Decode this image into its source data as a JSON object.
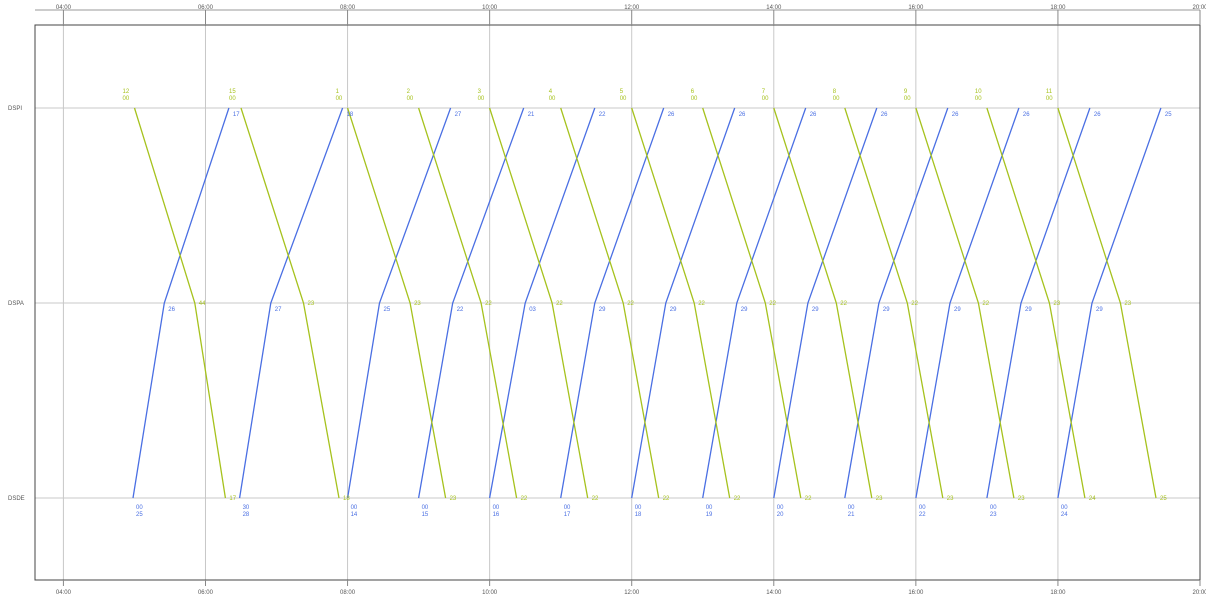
{
  "chart_data": {
    "type": "line",
    "title": "",
    "xlabel": "",
    "ylabel": "",
    "x_unit": "hours",
    "xlim": [
      3.6,
      20.0
    ],
    "x_ticks": [
      {
        "value": 4,
        "label": "04:00"
      },
      {
        "value": 6,
        "label": "06:00"
      },
      {
        "value": 8,
        "label": "08:00"
      },
      {
        "value": 10,
        "label": "10:00"
      },
      {
        "value": 12,
        "label": "12:00"
      },
      {
        "value": 14,
        "label": "14:00"
      },
      {
        "value": 16,
        "label": "16:00"
      },
      {
        "value": 18,
        "label": "18:00"
      },
      {
        "value": 20,
        "label": "20:00"
      }
    ],
    "stations": [
      "DSPI",
      "DSPA",
      "DSDE"
    ],
    "grid": true,
    "legend": "none",
    "colors": {
      "northbound": "#4a6fe3",
      "southbound": "#a6c21d",
      "frame": "#444444",
      "grid": "#c8c8c8"
    },
    "series": [
      {
        "direction": "northbound",
        "stops": [
          {
            "station": "DSDE",
            "time": 4.98
          },
          {
            "station": "DSPA",
            "time": 5.42
          },
          {
            "station": "DSPI",
            "time": 6.33
          }
        ],
        "labels": [
          {
            "station": "DSDE",
            "lines": [
              "00",
              "25"
            ]
          },
          {
            "station": "DSPA",
            "lines": [
              "26"
            ]
          },
          {
            "station": "DSPI",
            "lines": [
              "17"
            ]
          }
        ]
      },
      {
        "direction": "northbound",
        "stops": [
          {
            "station": "DSDE",
            "time": 6.48
          },
          {
            "station": "DSPA",
            "time": 6.92
          },
          {
            "station": "DSPI",
            "time": 7.93
          }
        ],
        "labels": [
          {
            "station": "DSDE",
            "lines": [
              "30",
              "28"
            ]
          },
          {
            "station": "DSPA",
            "lines": [
              "27"
            ]
          },
          {
            "station": "DSPI",
            "lines": [
              "18"
            ]
          }
        ]
      },
      {
        "direction": "northbound",
        "stops": [
          {
            "station": "DSDE",
            "time": 8.0
          },
          {
            "station": "DSPA",
            "time": 8.45
          },
          {
            "station": "DSPI",
            "time": 9.45
          }
        ],
        "labels": [
          {
            "station": "DSDE",
            "lines": [
              "00",
              "14"
            ]
          },
          {
            "station": "DSPA",
            "lines": [
              "25"
            ]
          },
          {
            "station": "DSPI",
            "lines": [
              "27"
            ]
          }
        ]
      },
      {
        "direction": "northbound",
        "stops": [
          {
            "station": "DSDE",
            "time": 9.0
          },
          {
            "station": "DSPA",
            "time": 9.48
          },
          {
            "station": "DSPI",
            "time": 10.48
          }
        ],
        "labels": [
          {
            "station": "DSDE",
            "lines": [
              "00",
              "15"
            ]
          },
          {
            "station": "DSPA",
            "lines": [
              "22"
            ]
          },
          {
            "station": "DSPI",
            "lines": [
              "21"
            ]
          }
        ]
      },
      {
        "direction": "northbound",
        "stops": [
          {
            "station": "DSDE",
            "time": 10.0
          },
          {
            "station": "DSPA",
            "time": 10.5
          },
          {
            "station": "DSPI",
            "time": 11.48
          }
        ],
        "labels": [
          {
            "station": "DSDE",
            "lines": [
              "00",
              "16"
            ]
          },
          {
            "station": "DSPA",
            "lines": [
              "03"
            ]
          },
          {
            "station": "DSPI",
            "lines": [
              "22"
            ]
          }
        ]
      },
      {
        "direction": "northbound",
        "stops": [
          {
            "station": "DSDE",
            "time": 11.0
          },
          {
            "station": "DSPA",
            "time": 11.48
          },
          {
            "station": "DSPI",
            "time": 12.45
          }
        ],
        "labels": [
          {
            "station": "DSDE",
            "lines": [
              "00",
              "17"
            ]
          },
          {
            "station": "DSPA",
            "lines": [
              "29"
            ]
          },
          {
            "station": "DSPI",
            "lines": [
              "26"
            ]
          }
        ]
      },
      {
        "direction": "northbound",
        "stops": [
          {
            "station": "DSDE",
            "time": 12.0
          },
          {
            "station": "DSPA",
            "time": 12.48
          },
          {
            "station": "DSPI",
            "time": 13.45
          }
        ],
        "labels": [
          {
            "station": "DSDE",
            "lines": [
              "00",
              "18"
            ]
          },
          {
            "station": "DSPA",
            "lines": [
              "29"
            ]
          },
          {
            "station": "DSPI",
            "lines": [
              "26"
            ]
          }
        ]
      },
      {
        "direction": "northbound",
        "stops": [
          {
            "station": "DSDE",
            "time": 13.0
          },
          {
            "station": "DSPA",
            "time": 13.48
          },
          {
            "station": "DSPI",
            "time": 14.45
          }
        ],
        "labels": [
          {
            "station": "DSDE",
            "lines": [
              "00",
              "19"
            ]
          },
          {
            "station": "DSPA",
            "lines": [
              "29"
            ]
          },
          {
            "station": "DSPI",
            "lines": [
              "26"
            ]
          }
        ]
      },
      {
        "direction": "northbound",
        "stops": [
          {
            "station": "DSDE",
            "time": 14.0
          },
          {
            "station": "DSPA",
            "time": 14.48
          },
          {
            "station": "DSPI",
            "time": 15.45
          }
        ],
        "labels": [
          {
            "station": "DSDE",
            "lines": [
              "00",
              "20"
            ]
          },
          {
            "station": "DSPA",
            "lines": [
              "29"
            ]
          },
          {
            "station": "DSPI",
            "lines": [
              "26"
            ]
          }
        ]
      },
      {
        "direction": "northbound",
        "stops": [
          {
            "station": "DSDE",
            "time": 15.0
          },
          {
            "station": "DSPA",
            "time": 15.48
          },
          {
            "station": "DSPI",
            "time": 16.45
          }
        ],
        "labels": [
          {
            "station": "DSDE",
            "lines": [
              "00",
              "21"
            ]
          },
          {
            "station": "DSPA",
            "lines": [
              "29"
            ]
          },
          {
            "station": "DSPI",
            "lines": [
              "26"
            ]
          }
        ]
      },
      {
        "direction": "northbound",
        "stops": [
          {
            "station": "DSDE",
            "time": 16.0
          },
          {
            "station": "DSPA",
            "time": 16.48
          },
          {
            "station": "DSPI",
            "time": 17.45
          }
        ],
        "labels": [
          {
            "station": "DSDE",
            "lines": [
              "00",
              "22"
            ]
          },
          {
            "station": "DSPA",
            "lines": [
              "29"
            ]
          },
          {
            "station": "DSPI",
            "lines": [
              "26"
            ]
          }
        ]
      },
      {
        "direction": "northbound",
        "stops": [
          {
            "station": "DSDE",
            "time": 17.0
          },
          {
            "station": "DSPA",
            "time": 17.48
          },
          {
            "station": "DSPI",
            "time": 18.45
          }
        ],
        "labels": [
          {
            "station": "DSDE",
            "lines": [
              "00",
              "23"
            ]
          },
          {
            "station": "DSPA",
            "lines": [
              "29"
            ]
          },
          {
            "station": "DSPI",
            "lines": [
              "26"
            ]
          }
        ]
      },
      {
        "direction": "northbound",
        "stops": [
          {
            "station": "DSDE",
            "time": 18.0
          },
          {
            "station": "DSPA",
            "time": 18.48
          },
          {
            "station": "DSPI",
            "time": 19.45
          }
        ],
        "labels": [
          {
            "station": "DSDE",
            "lines": [
              "00",
              "24"
            ]
          },
          {
            "station": "DSPA",
            "lines": [
              "29"
            ]
          },
          {
            "station": "DSPI",
            "lines": [
              "25"
            ]
          }
        ]
      },
      {
        "direction": "southbound",
        "stops": [
          {
            "station": "DSPI",
            "time": 5.0
          },
          {
            "station": "DSPA",
            "time": 5.85
          },
          {
            "station": "DSDE",
            "time": 6.28
          }
        ],
        "labels": [
          {
            "station": "DSPI",
            "lines": [
              "12",
              "00"
            ]
          },
          {
            "station": "DSPA",
            "lines": [
              "44"
            ]
          },
          {
            "station": "DSDE",
            "lines": [
              "17"
            ]
          }
        ]
      },
      {
        "direction": "southbound",
        "stops": [
          {
            "station": "DSPI",
            "time": 6.5
          },
          {
            "station": "DSPA",
            "time": 7.38
          },
          {
            "station": "DSDE",
            "time": 7.88
          }
        ],
        "labels": [
          {
            "station": "DSPI",
            "lines": [
              "15",
              "00"
            ]
          },
          {
            "station": "DSPA",
            "lines": [
              "23"
            ]
          },
          {
            "station": "DSDE",
            "lines": [
              "18"
            ]
          }
        ]
      },
      {
        "direction": "southbound",
        "stops": [
          {
            "station": "DSPI",
            "time": 8.0
          },
          {
            "station": "DSPA",
            "time": 8.88
          },
          {
            "station": "DSDE",
            "time": 9.38
          }
        ],
        "labels": [
          {
            "station": "DSPI",
            "lines": [
              "1",
              "00"
            ]
          },
          {
            "station": "DSPA",
            "lines": [
              "23"
            ]
          },
          {
            "station": "DSDE",
            "lines": [
              "23"
            ]
          }
        ]
      },
      {
        "direction": "southbound",
        "stops": [
          {
            "station": "DSPI",
            "time": 9.0
          },
          {
            "station": "DSPA",
            "time": 9.88
          },
          {
            "station": "DSDE",
            "time": 10.38
          }
        ],
        "labels": [
          {
            "station": "DSPI",
            "lines": [
              "2",
              "00"
            ]
          },
          {
            "station": "DSPA",
            "lines": [
              "22"
            ]
          },
          {
            "station": "DSDE",
            "lines": [
              "22"
            ]
          }
        ]
      },
      {
        "direction": "southbound",
        "stops": [
          {
            "station": "DSPI",
            "time": 10.0
          },
          {
            "station": "DSPA",
            "time": 10.88
          },
          {
            "station": "DSDE",
            "time": 11.38
          }
        ],
        "labels": [
          {
            "station": "DSPI",
            "lines": [
              "3",
              "00"
            ]
          },
          {
            "station": "DSPA",
            "lines": [
              "22"
            ]
          },
          {
            "station": "DSDE",
            "lines": [
              "22"
            ]
          }
        ]
      },
      {
        "direction": "southbound",
        "stops": [
          {
            "station": "DSPI",
            "time": 11.0
          },
          {
            "station": "DSPA",
            "time": 11.88
          },
          {
            "station": "DSDE",
            "time": 12.38
          }
        ],
        "labels": [
          {
            "station": "DSPI",
            "lines": [
              "4",
              "00"
            ]
          },
          {
            "station": "DSPA",
            "lines": [
              "22"
            ]
          },
          {
            "station": "DSDE",
            "lines": [
              "22"
            ]
          }
        ]
      },
      {
        "direction": "southbound",
        "stops": [
          {
            "station": "DSPI",
            "time": 12.0
          },
          {
            "station": "DSPA",
            "time": 12.88
          },
          {
            "station": "DSDE",
            "time": 13.38
          }
        ],
        "labels": [
          {
            "station": "DSPI",
            "lines": [
              "5",
              "00"
            ]
          },
          {
            "station": "DSPA",
            "lines": [
              "22"
            ]
          },
          {
            "station": "DSDE",
            "lines": [
              "22"
            ]
          }
        ]
      },
      {
        "direction": "southbound",
        "stops": [
          {
            "station": "DSPI",
            "time": 13.0
          },
          {
            "station": "DSPA",
            "time": 13.88
          },
          {
            "station": "DSDE",
            "time": 14.38
          }
        ],
        "labels": [
          {
            "station": "DSPI",
            "lines": [
              "6",
              "00"
            ]
          },
          {
            "station": "DSPA",
            "lines": [
              "22"
            ]
          },
          {
            "station": "DSDE",
            "lines": [
              "22"
            ]
          }
        ]
      },
      {
        "direction": "southbound",
        "stops": [
          {
            "station": "DSPI",
            "time": 14.0
          },
          {
            "station": "DSPA",
            "time": 14.88
          },
          {
            "station": "DSDE",
            "time": 15.38
          }
        ],
        "labels": [
          {
            "station": "DSPI",
            "lines": [
              "7",
              "00"
            ]
          },
          {
            "station": "DSPA",
            "lines": [
              "22"
            ]
          },
          {
            "station": "DSDE",
            "lines": [
              "23"
            ]
          }
        ]
      },
      {
        "direction": "southbound",
        "stops": [
          {
            "station": "DSPI",
            "time": 15.0
          },
          {
            "station": "DSPA",
            "time": 15.88
          },
          {
            "station": "DSDE",
            "time": 16.38
          }
        ],
        "labels": [
          {
            "station": "DSPI",
            "lines": [
              "8",
              "00"
            ]
          },
          {
            "station": "DSPA",
            "lines": [
              "22"
            ]
          },
          {
            "station": "DSDE",
            "lines": [
              "23"
            ]
          }
        ]
      },
      {
        "direction": "southbound",
        "stops": [
          {
            "station": "DSPI",
            "time": 16.0
          },
          {
            "station": "DSPA",
            "time": 16.88
          },
          {
            "station": "DSDE",
            "time": 17.38
          }
        ],
        "labels": [
          {
            "station": "DSPI",
            "lines": [
              "9",
              "00"
            ]
          },
          {
            "station": "DSPA",
            "lines": [
              "22"
            ]
          },
          {
            "station": "DSDE",
            "lines": [
              "23"
            ]
          }
        ]
      },
      {
        "direction": "southbound",
        "stops": [
          {
            "station": "DSPI",
            "time": 17.0
          },
          {
            "station": "DSPA",
            "time": 17.88
          },
          {
            "station": "DSDE",
            "time": 18.38
          }
        ],
        "labels": [
          {
            "station": "DSPI",
            "lines": [
              "10",
              "00"
            ]
          },
          {
            "station": "DSPA",
            "lines": [
              "23"
            ]
          },
          {
            "station": "DSDE",
            "lines": [
              "24"
            ]
          }
        ]
      },
      {
        "direction": "southbound",
        "stops": [
          {
            "station": "DSPI",
            "time": 18.0
          },
          {
            "station": "DSPA",
            "time": 18.88
          },
          {
            "station": "DSDE",
            "time": 19.38
          }
        ],
        "labels": [
          {
            "station": "DSPI",
            "lines": [
              "11",
              "00"
            ]
          },
          {
            "station": "DSPA",
            "lines": [
              "23"
            ]
          },
          {
            "station": "DSDE",
            "lines": [
              "25"
            ]
          }
        ]
      }
    ]
  }
}
